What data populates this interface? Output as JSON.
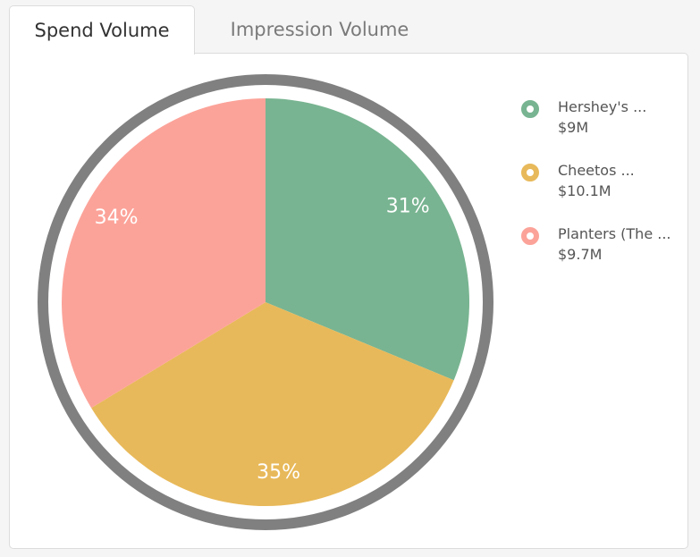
{
  "tabs": [
    {
      "label": "Spend Volume",
      "active": true
    },
    {
      "label": "Impression Volume",
      "active": false
    }
  ],
  "colors": {
    "ring": "#808080",
    "slices": [
      "#78b491",
      "#e8b95a",
      "#fca399"
    ]
  },
  "chart_data": {
    "type": "pie",
    "slices": [
      {
        "name": "Hershey's ...",
        "value_label": "$9M",
        "value": 9.0,
        "percent_label": "31%",
        "color": "#78b491"
      },
      {
        "name": "Cheetos ...",
        "value_label": "$10.1M",
        "value": 10.1,
        "percent_label": "35%",
        "color": "#e8b95a"
      },
      {
        "name": "Planters (The ...",
        "value_label": "$9.7M",
        "value": 9.7,
        "percent_label": "34%",
        "color": "#fca399"
      }
    ],
    "legend_position": "right"
  }
}
